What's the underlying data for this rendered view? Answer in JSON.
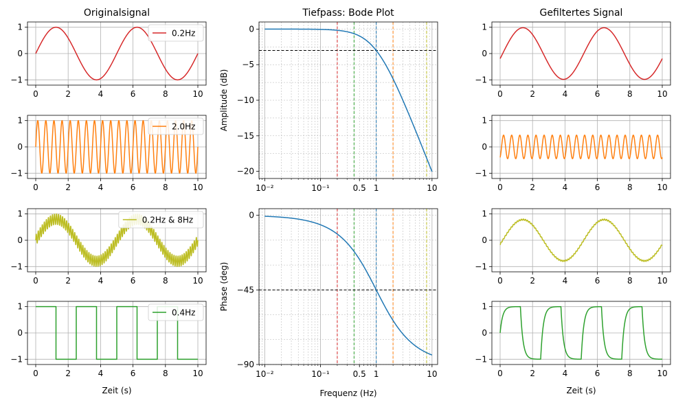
{
  "colors": {
    "red": "#d62728",
    "orange": "#ff7f0e",
    "olive": "#bcbd22",
    "green": "#2ca02c",
    "blue": "#1f77b4",
    "black": "#000000",
    "grid": "#b0b0b0"
  },
  "titles": {
    "original": "Originalsignal",
    "bode": "Tiefpass: Bode Plot",
    "filtered": "Gefiltertes Signal"
  },
  "labels": {
    "time": "Zeit (s)",
    "frequency": "Frequenz (Hz)",
    "amplitude": "Amplitude (dB)",
    "phase": "Phase (deg)"
  },
  "chart_data": [
    {
      "id": "orig-0",
      "type": "line",
      "column": "original",
      "row": 0,
      "signal": "sine",
      "freqs_hz": [
        0.2
      ],
      "color": "red",
      "legend": "0.2Hz",
      "legend_pos": "upper-right",
      "xlim": [
        0,
        10
      ],
      "ylim": [
        -1.2,
        1.2
      ],
      "xticks": [
        0,
        2,
        4,
        6,
        8,
        10
      ],
      "yticks": [
        -1,
        0,
        1
      ],
      "grid": true
    },
    {
      "id": "orig-1",
      "type": "line",
      "column": "original",
      "row": 1,
      "signal": "sine",
      "freqs_hz": [
        2.0
      ],
      "color": "orange",
      "legend": "2.0Hz",
      "legend_pos": "upper-right",
      "xlim": [
        0,
        10
      ],
      "ylim": [
        -1.2,
        1.2
      ],
      "xticks": [
        0,
        2,
        4,
        6,
        8,
        10
      ],
      "yticks": [
        -1,
        0,
        1
      ],
      "grid": true
    },
    {
      "id": "orig-2",
      "type": "line",
      "column": "original",
      "row": 2,
      "signal": "sine-sum",
      "freqs_hz": [
        0.2,
        8.0
      ],
      "weights": [
        0.8,
        0.2
      ],
      "color": "olive",
      "legend": "0.2Hz & 8Hz",
      "legend_pos": "upper-right",
      "xlim": [
        0,
        10
      ],
      "ylim": [
        -1.2,
        1.2
      ],
      "xticks": [
        0,
        2,
        4,
        6,
        8,
        10
      ],
      "yticks": [
        -1,
        0,
        1
      ],
      "grid": true
    },
    {
      "id": "orig-3",
      "type": "line",
      "column": "original",
      "row": 3,
      "signal": "square",
      "freqs_hz": [
        0.4
      ],
      "color": "green",
      "legend": "0.4Hz",
      "legend_pos": "upper-right",
      "xlim": [
        0,
        10
      ],
      "ylim": [
        -1.2,
        1.2
      ],
      "xticks": [
        0,
        2,
        4,
        6,
        8,
        10
      ],
      "yticks": [
        -1,
        0,
        1
      ],
      "grid": true,
      "xlabel": "Zeit (s)"
    },
    {
      "id": "bode-mag",
      "type": "line",
      "column": "bode",
      "row": 0,
      "x_scale": "log",
      "xlim": [
        0.0079,
        12.6
      ],
      "ylim": [
        -21,
        1
      ],
      "cutoff_hz": 1.0,
      "yticks": [
        0,
        -5,
        -10,
        -15,
        -20
      ],
      "xticks": [
        0.01,
        0.1,
        0.5,
        1,
        10
      ],
      "xtick_labels": [
        "10⁻²",
        "10⁻¹",
        "0.5",
        "1",
        "10"
      ],
      "ylabel": "Amplitude (dB)",
      "hline": -3,
      "curve_color": "blue",
      "freq_markers": [
        {
          "hz": 0.2,
          "color": "red"
        },
        {
          "hz": 0.4,
          "color": "green"
        },
        {
          "hz": 1.0,
          "color": "blue"
        },
        {
          "hz": 2.0,
          "color": "orange"
        },
        {
          "hz": 8.0,
          "color": "olive"
        }
      ]
    },
    {
      "id": "bode-phase",
      "type": "line",
      "column": "bode",
      "row": 1,
      "x_scale": "log",
      "xlim": [
        0.0079,
        12.6
      ],
      "ylim": [
        -90,
        4
      ],
      "cutoff_hz": 1.0,
      "yticks": [
        0,
        -45,
        -90
      ],
      "xticks": [
        0.01,
        0.1,
        0.5,
        1,
        10
      ],
      "xtick_labels": [
        "10⁻²",
        "10⁻¹",
        "0.5",
        "1",
        "10"
      ],
      "ylabel": "Phase (deg)",
      "xlabel": "Frequenz (Hz)",
      "hline": -45,
      "curve_color": "blue",
      "freq_markers": [
        {
          "hz": 0.2,
          "color": "red"
        },
        {
          "hz": 0.4,
          "color": "green"
        },
        {
          "hz": 1.0,
          "color": "blue"
        },
        {
          "hz": 2.0,
          "color": "orange"
        },
        {
          "hz": 8.0,
          "color": "olive"
        }
      ]
    },
    {
      "id": "filt-0",
      "type": "line",
      "column": "filtered",
      "row": 0,
      "signal": "filtered-sine",
      "freqs_hz": [
        0.2
      ],
      "color": "red",
      "cutoff_hz": 1.0,
      "xlim": [
        0,
        10
      ],
      "ylim": [
        -1.2,
        1.2
      ],
      "xticks": [
        0,
        2,
        4,
        6,
        8,
        10
      ],
      "yticks": [
        -1,
        0,
        1
      ],
      "grid": true
    },
    {
      "id": "filt-1",
      "type": "line",
      "column": "filtered",
      "row": 1,
      "signal": "filtered-sine",
      "freqs_hz": [
        2.0
      ],
      "color": "orange",
      "cutoff_hz": 1.0,
      "xlim": [
        0,
        10
      ],
      "ylim": [
        -1.2,
        1.2
      ],
      "xticks": [
        0,
        2,
        4,
        6,
        8,
        10
      ],
      "yticks": [
        -1,
        0,
        1
      ],
      "grid": true
    },
    {
      "id": "filt-2",
      "type": "line",
      "column": "filtered",
      "row": 2,
      "signal": "filtered-sine-sum",
      "freqs_hz": [
        0.2,
        8.0
      ],
      "weights": [
        0.8,
        0.2
      ],
      "color": "olive",
      "cutoff_hz": 1.0,
      "xlim": [
        0,
        10
      ],
      "ylim": [
        -1.2,
        1.2
      ],
      "xticks": [
        0,
        2,
        4,
        6,
        8,
        10
      ],
      "yticks": [
        -1,
        0,
        1
      ],
      "grid": true
    },
    {
      "id": "filt-3",
      "type": "line",
      "column": "filtered",
      "row": 3,
      "signal": "filtered-square",
      "freqs_hz": [
        0.4
      ],
      "color": "green",
      "cutoff_hz": 1.0,
      "xlim": [
        0,
        10
      ],
      "ylim": [
        -1.2,
        1.2
      ],
      "xticks": [
        0,
        2,
        4,
        6,
        8,
        10
      ],
      "yticks": [
        -1,
        0,
        1
      ],
      "grid": true,
      "xlabel": "Zeit (s)"
    }
  ]
}
